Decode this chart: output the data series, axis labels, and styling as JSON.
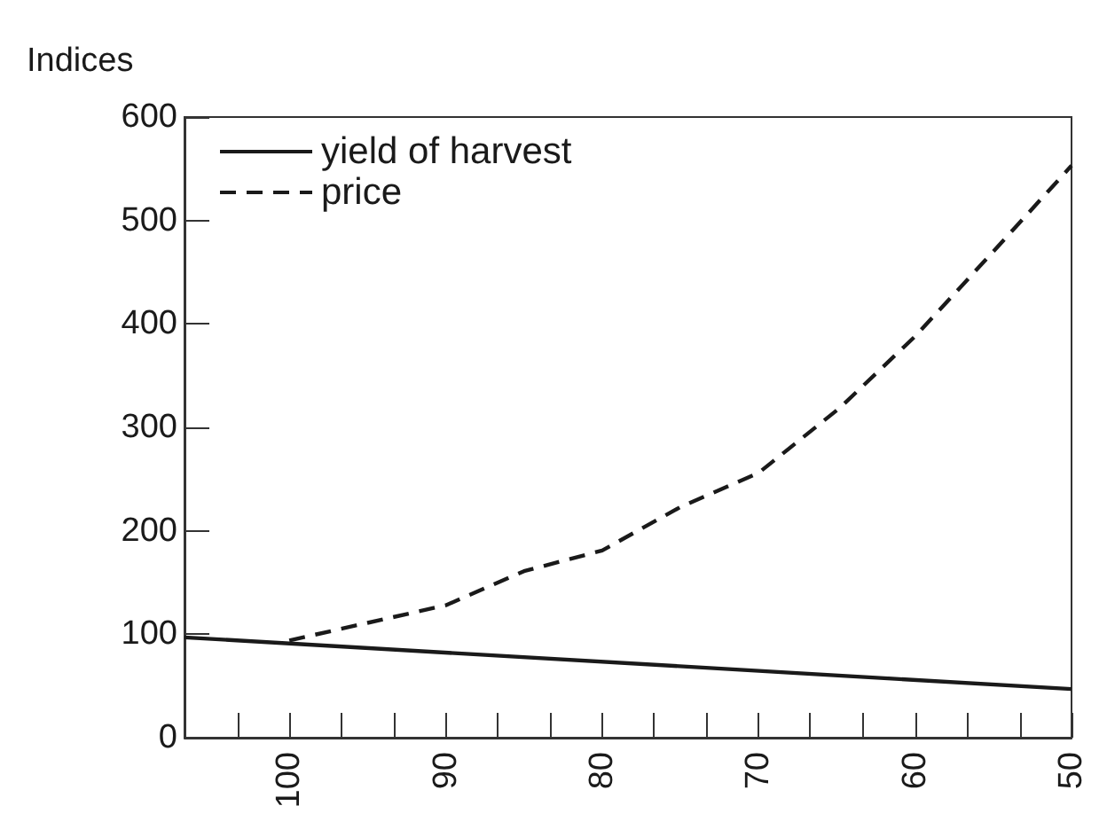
{
  "chart_data": {
    "type": "line",
    "ylabel": "Indices",
    "xlim": [
      106.7,
      50
    ],
    "ylim": [
      0,
      600
    ],
    "xticks": [
      {
        "value": 103.3,
        "label": null
      },
      100,
      {
        "value": 96.7,
        "label": null
      },
      {
        "value": 93.3,
        "label": null
      },
      90,
      {
        "value": 86.7,
        "label": null
      },
      {
        "value": 83.3,
        "label": null
      },
      80,
      {
        "value": 76.7,
        "label": null
      },
      {
        "value": 73.3,
        "label": null
      },
      70,
      {
        "value": 66.7,
        "label": null
      },
      {
        "value": 63.3,
        "label": null
      },
      60,
      {
        "value": 56.7,
        "label": null
      },
      {
        "value": 53.3,
        "label": null
      },
      50
    ],
    "yticks": [
      0,
      100,
      200,
      300,
      400,
      500,
      600
    ],
    "grid": false,
    "legend": "top left",
    "marker": "none",
    "series": [
      {
        "name": "yield of harvest",
        "color": "#1a1a1a",
        "line_style": "solid",
        "x": [
          106.7,
          50
        ],
        "values": [
          97,
          47
        ]
      },
      {
        "name": "price",
        "color": "#1a1a1a",
        "line_style": "dashed",
        "x": [
          100,
          95,
          90,
          85,
          80,
          75,
          70,
          64.8,
          60,
          55.3,
          50
        ],
        "values": [
          94,
          111,
          128,
          161,
          181,
          223,
          256,
          319,
          388,
          465,
          553
        ]
      }
    ]
  }
}
